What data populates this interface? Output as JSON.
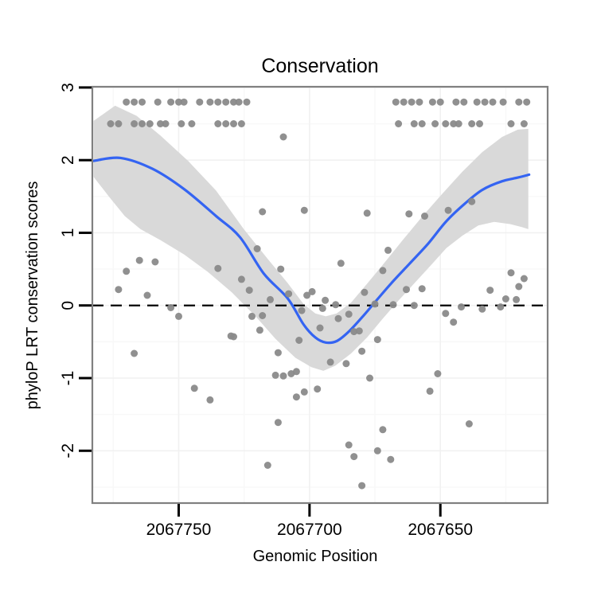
{
  "title": "Conservation",
  "axes": {
    "x": {
      "label": "Genomic Position",
      "tick_labels": [
        "2067750",
        "2067700",
        "2067650"
      ],
      "tick_values": [
        2067750,
        2067700,
        2067650
      ],
      "minor_values": [
        2067775,
        2067725,
        2067675,
        2067625
      ],
      "reversed": true
    },
    "y": {
      "label": "phyloP LRT conservation scores",
      "tick_labels": [
        "3",
        "2",
        "1",
        "0",
        "-1",
        "-2"
      ],
      "tick_values": [
        3,
        2,
        1,
        0,
        -1,
        -2
      ],
      "minor_values": [
        2.5,
        1.5,
        0.5,
        -0.5,
        -1.5,
        -2.5
      ]
    }
  },
  "colors": {
    "smooth_line": "#3464F2",
    "confidence_band": "#D9D9D9",
    "point": "#8A8A8A",
    "zero_line": "#000000",
    "panel_border": "#808080",
    "grid_major": "#F1F1F1",
    "grid_minor": "#F8F8F8",
    "background": "#FFFFFF",
    "text": "#000000"
  },
  "chart_data": {
    "type": "scatter",
    "title": "Conservation",
    "xlabel": "Genomic Position",
    "ylabel": "phyloP LRT conservation scores",
    "x_axis_reversed": true,
    "xlim": [
      2067783,
      2067609
    ],
    "ylim": [
      -2.72,
      3.01
    ],
    "zero_line": {
      "y": 0,
      "style": "dashed"
    },
    "points": [
      [
        2067770,
        2.8
      ],
      [
        2067767,
        2.8
      ],
      [
        2067764,
        2.8
      ],
      [
        2067758,
        2.8
      ],
      [
        2067753,
        2.8
      ],
      [
        2067750,
        2.8
      ],
      [
        2067748,
        2.8
      ],
      [
        2067742,
        2.8
      ],
      [
        2067738,
        2.8
      ],
      [
        2067735,
        2.8
      ],
      [
        2067732,
        2.8
      ],
      [
        2067729,
        2.8
      ],
      [
        2067727,
        2.8
      ],
      [
        2067724,
        2.8
      ],
      [
        2067667,
        2.8
      ],
      [
        2067664,
        2.8
      ],
      [
        2067661,
        2.8
      ],
      [
        2067658,
        2.8
      ],
      [
        2067653,
        2.8
      ],
      [
        2067650,
        2.8
      ],
      [
        2067644,
        2.8
      ],
      [
        2067641,
        2.8
      ],
      [
        2067636,
        2.8
      ],
      [
        2067633,
        2.8
      ],
      [
        2067630,
        2.8
      ],
      [
        2067626,
        2.8
      ],
      [
        2067620,
        2.8
      ],
      [
        2067617,
        2.8
      ],
      [
        2067776,
        2.5
      ],
      [
        2067773,
        2.5
      ],
      [
        2067767,
        2.5
      ],
      [
        2067764,
        2.5
      ],
      [
        2067761,
        2.5
      ],
      [
        2067757,
        2.5
      ],
      [
        2067755,
        2.5
      ],
      [
        2067749,
        2.5
      ],
      [
        2067745,
        2.5
      ],
      [
        2067735,
        2.5
      ],
      [
        2067732,
        2.5
      ],
      [
        2067729,
        2.5
      ],
      [
        2067726,
        2.5
      ],
      [
        2067666,
        2.5
      ],
      [
        2067660,
        2.5
      ],
      [
        2067657,
        2.5
      ],
      [
        2067652,
        2.5
      ],
      [
        2067648,
        2.5
      ],
      [
        2067645,
        2.5
      ],
      [
        2067643,
        2.5
      ],
      [
        2067638,
        2.5
      ],
      [
        2067635,
        2.5
      ],
      [
        2067623,
        2.5
      ],
      [
        2067618,
        2.5
      ],
      [
        2067710,
        2.32
      ],
      [
        2067718,
        1.29
      ],
      [
        2067702,
        1.31
      ],
      [
        2067678,
        1.27
      ],
      [
        2067765,
        0.62
      ],
      [
        2067759,
        0.6
      ],
      [
        2067770,
        0.47
      ],
      [
        2067735,
        0.51
      ],
      [
        2067773,
        0.22
      ],
      [
        2067762,
        0.14
      ],
      [
        2067753,
        -0.03
      ],
      [
        2067750,
        -0.15
      ],
      [
        2067729,
        -0.43
      ],
      [
        2067767,
        -0.66
      ],
      [
        2067744,
        -1.14
      ],
      [
        2067738,
        -1.3
      ],
      [
        2067720,
        0.78
      ],
      [
        2067711,
        0.5
      ],
      [
        2067688,
        0.58
      ],
      [
        2067726,
        0.36
      ],
      [
        2067723,
        0.21
      ],
      [
        2067715,
        0.08
      ],
      [
        2067708,
        0.16
      ],
      [
        2067701,
        0.14
      ],
      [
        2067699,
        0.19
      ],
      [
        2067694,
        0.07
      ],
      [
        2067690,
        0.01
      ],
      [
        2067695,
        -0.04
      ],
      [
        2067703,
        -0.07
      ],
      [
        2067722,
        -0.15
      ],
      [
        2067718,
        -0.14
      ],
      [
        2067719,
        -0.34
      ],
      [
        2067730,
        -0.42
      ],
      [
        2067696,
        -0.31
      ],
      [
        2067689,
        -0.18
      ],
      [
        2067685,
        -0.12
      ],
      [
        2067683,
        -0.36
      ],
      [
        2067681,
        -0.35
      ],
      [
        2067679,
        0.18
      ],
      [
        2067675,
        0.02
      ],
      [
        2067670,
        0.76
      ],
      [
        2067672,
        0.48
      ],
      [
        2067674,
        -0.47
      ],
      [
        2067704,
        -0.48
      ],
      [
        2067712,
        -0.65
      ],
      [
        2067680,
        -0.63
      ],
      [
        2067692,
        -0.78
      ],
      [
        2067686,
        -0.8
      ],
      [
        2067713,
        -0.96
      ],
      [
        2067710,
        -0.97
      ],
      [
        2067707,
        -0.94
      ],
      [
        2067705,
        -0.91
      ],
      [
        2067677,
        -1.0
      ],
      [
        2067705,
        -1.26
      ],
      [
        2067702,
        -1.19
      ],
      [
        2067697,
        -1.15
      ],
      [
        2067712,
        -1.61
      ],
      [
        2067716,
        -2.2
      ],
      [
        2067685,
        -1.92
      ],
      [
        2067683,
        -2.08
      ],
      [
        2067680,
        -2.48
      ],
      [
        2067674,
        -2.0
      ],
      [
        2067672,
        -1.71
      ],
      [
        2067669,
        -2.12
      ],
      [
        2067662,
        1.26
      ],
      [
        2067656,
        1.23
      ],
      [
        2067647,
        1.31
      ],
      [
        2067638,
        1.43
      ],
      [
        2067663,
        0.22
      ],
      [
        2067657,
        0.23
      ],
      [
        2067668,
        0.01
      ],
      [
        2067660,
        0.0
      ],
      [
        2067648,
        -0.11
      ],
      [
        2067645,
        -0.23
      ],
      [
        2067642,
        -0.02
      ],
      [
        2067634,
        -0.05
      ],
      [
        2067631,
        0.21
      ],
      [
        2067627,
        -0.02
      ],
      [
        2067625,
        0.09
      ],
      [
        2067623,
        0.45
      ],
      [
        2067621,
        0.08
      ],
      [
        2067618,
        0.37
      ],
      [
        2067620,
        0.26
      ],
      [
        2067651,
        -0.94
      ],
      [
        2067654,
        -1.18
      ],
      [
        2067639,
        -1.63
      ]
    ],
    "smooth_line": [
      [
        2067782.5,
        1.99
      ],
      [
        2067772.2,
        2.03
      ],
      [
        2067760.0,
        1.88
      ],
      [
        2067747.9,
        1.6
      ],
      [
        2067735.7,
        1.23
      ],
      [
        2067726.6,
        0.94
      ],
      [
        2067717.5,
        0.44
      ],
      [
        2067708.4,
        0.1
      ],
      [
        2067702.3,
        -0.26
      ],
      [
        2067697.8,
        -0.44
      ],
      [
        2067693.8,
        -0.51
      ],
      [
        2067689.6,
        -0.49
      ],
      [
        2067685.0,
        -0.36
      ],
      [
        2067679.6,
        -0.15
      ],
      [
        2067674.4,
        0.07
      ],
      [
        2067668.9,
        0.3
      ],
      [
        2067661.9,
        0.57
      ],
      [
        2067654.7,
        0.85
      ],
      [
        2067647.7,
        1.16
      ],
      [
        2067640.7,
        1.4
      ],
      [
        2067634.0,
        1.59
      ],
      [
        2067626.4,
        1.71
      ],
      [
        2067620.4,
        1.76
      ],
      [
        2067616.1,
        1.8
      ]
    ],
    "band_upper": [
      [
        2067782.5,
        2.54
      ],
      [
        2067774.3,
        2.75
      ],
      [
        2067766.1,
        2.61
      ],
      [
        2067757.0,
        2.34
      ],
      [
        2067746.4,
        1.99
      ],
      [
        2067735.7,
        1.58
      ],
      [
        2067725.1,
        1.05
      ],
      [
        2067716.0,
        0.64
      ],
      [
        2067708.4,
        0.31
      ],
      [
        2067702.3,
        0.02
      ],
      [
        2067697.8,
        -0.11
      ],
      [
        2067693.8,
        -0.15
      ],
      [
        2067689.6,
        -0.11
      ],
      [
        2067684.1,
        0.04
      ],
      [
        2067678.0,
        0.3
      ],
      [
        2067672.0,
        0.56
      ],
      [
        2067664.4,
        0.9
      ],
      [
        2067656.8,
        1.23
      ],
      [
        2067649.2,
        1.54
      ],
      [
        2067641.6,
        1.84
      ],
      [
        2067634.0,
        2.11
      ],
      [
        2067626.4,
        2.32
      ],
      [
        2067620.4,
        2.42
      ],
      [
        2067616.4,
        2.43
      ]
    ],
    "band_lower": [
      [
        2067782.5,
        1.77
      ],
      [
        2067776.7,
        1.5
      ],
      [
        2067770.6,
        1.23
      ],
      [
        2067764.6,
        1.05
      ],
      [
        2067757.0,
        0.9
      ],
      [
        2067747.9,
        0.7
      ],
      [
        2067738.8,
        0.46
      ],
      [
        2067729.7,
        0.18
      ],
      [
        2067720.6,
        -0.15
      ],
      [
        2067713.0,
        -0.46
      ],
      [
        2067705.4,
        -0.72
      ],
      [
        2067699.3,
        -0.85
      ],
      [
        2067694.7,
        -0.9
      ],
      [
        2067690.2,
        -0.83
      ],
      [
        2067684.1,
        -0.66
      ],
      [
        2067678.0,
        -0.44
      ],
      [
        2067672.0,
        -0.18
      ],
      [
        2067665.9,
        0.07
      ],
      [
        2067659.8,
        0.31
      ],
      [
        2067653.7,
        0.55
      ],
      [
        2067647.7,
        0.79
      ],
      [
        2067641.6,
        0.96
      ],
      [
        2067635.5,
        1.1
      ],
      [
        2067629.4,
        1.15
      ],
      [
        2067623.4,
        1.12
      ],
      [
        2067618.9,
        1.08
      ],
      [
        2067616.4,
        1.05
      ]
    ]
  }
}
